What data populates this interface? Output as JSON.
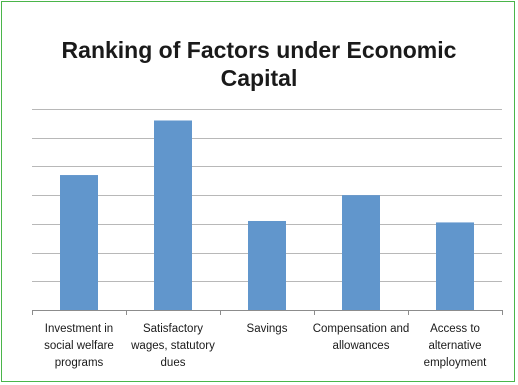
{
  "chart_data": {
    "type": "bar",
    "title_lines": [
      "Ranking of Factors under Economic",
      "Capital"
    ],
    "categories": [
      [
        "Investment in",
        "social welfare",
        "programs"
      ],
      [
        "Satisfactory",
        "wages, statutory",
        "dues"
      ],
      [
        "Savings"
      ],
      [
        "Compensation and",
        "allowances"
      ],
      [
        "Access to",
        "alternative",
        "employment"
      ]
    ],
    "values": [
      4.7,
      6.6,
      3.1,
      4.0,
      3.05
    ],
    "ylim": [
      0,
      7
    ],
    "gridlines": 7,
    "tick_labels_visible": false,
    "grid": true,
    "legend": "none",
    "bar_color": "#6196cc",
    "grid_color": "#b8b8b8",
    "axis_color": "#8c8c8c",
    "frame_color": "#4ab54a"
  }
}
